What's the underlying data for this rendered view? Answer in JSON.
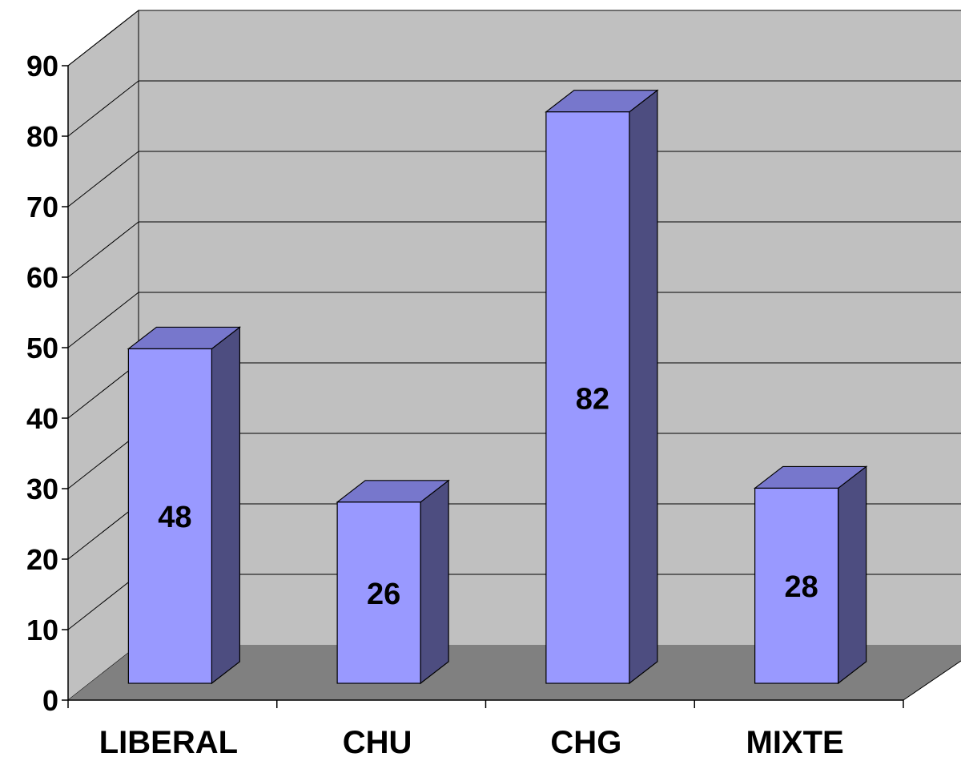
{
  "chart_data": {
    "type": "bar",
    "style": "3d-column",
    "title": "",
    "xlabel": "",
    "ylabel": "",
    "categories": [
      "LIBERAL",
      "CHU",
      "CHG",
      "MIXTE"
    ],
    "values": [
      48,
      26,
      82,
      28
    ],
    "data_labels": [
      "48",
      "26",
      "82",
      "28"
    ],
    "ylim": [
      0,
      90
    ],
    "yticks": [
      "0",
      "10",
      "20",
      "30",
      "40",
      "50",
      "60",
      "70",
      "80",
      "90"
    ],
    "grid": true,
    "legend": "none"
  },
  "colors": {
    "wall": "#c0c0c0",
    "floor": "#808080",
    "bar_front": "#9999ff",
    "bar_top": "#7777cc",
    "bar_side": "#4d4d80",
    "gridline": "#000000"
  }
}
